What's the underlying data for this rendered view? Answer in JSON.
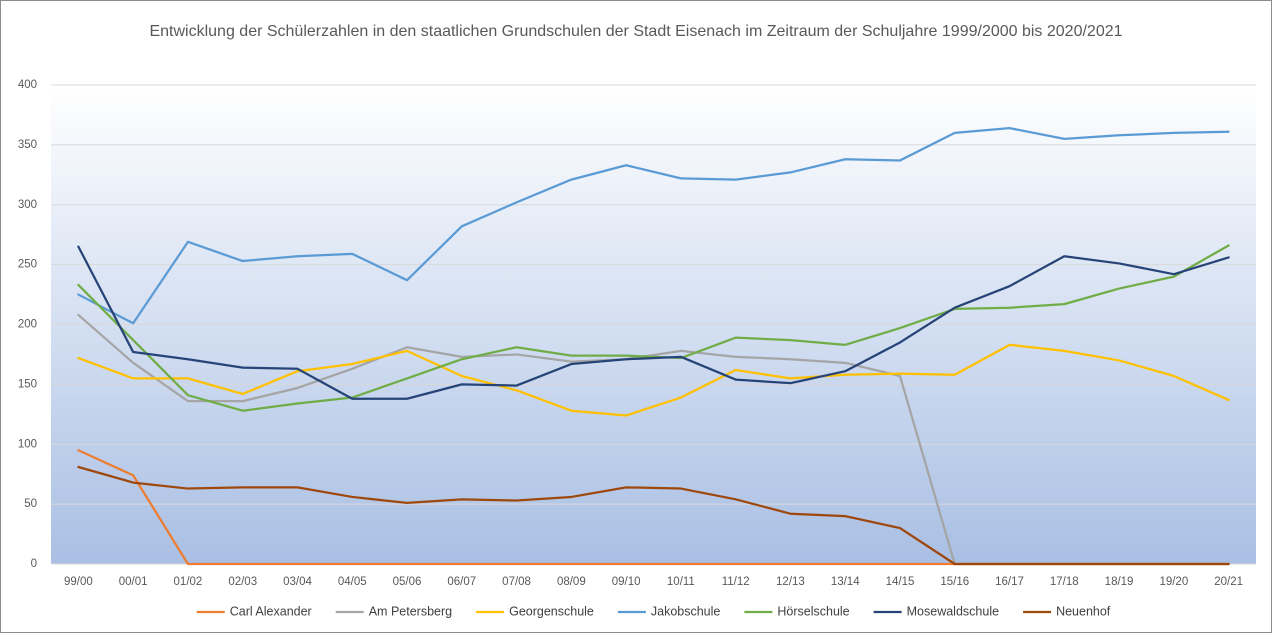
{
  "chart_data": {
    "type": "line",
    "title": "Entwicklung der Schülerzahlen in den staatlichen Grundschulen der Stadt Eisenach im Zeitraum der Schuljahre 1999/2000 bis 2020/2021",
    "categories": [
      "99/00",
      "00/01",
      "01/02",
      "02/03",
      "03/04",
      "04/05",
      "05/06",
      "06/07",
      "07/08",
      "08/09",
      "09/10",
      "10/11",
      "11/12",
      "12/13",
      "13/14",
      "14/15",
      "15/16",
      "16/17",
      "17/18",
      "18/19",
      "19/20",
      "20/21"
    ],
    "series": [
      {
        "name": "Carl Alexander",
        "color": "#ed7d31",
        "values": [
          95,
          74,
          0,
          0,
          0,
          0,
          0,
          0,
          0,
          0,
          0,
          0,
          0,
          0,
          0,
          0,
          0,
          0,
          0,
          0,
          0,
          0
        ]
      },
      {
        "name": "Am Petersberg",
        "color": "#a5a5a5",
        "values": [
          208,
          168,
          136,
          136,
          147,
          163,
          181,
          173,
          175,
          169,
          171,
          178,
          173,
          171,
          168,
          157,
          0,
          0,
          0,
          0,
          0,
          0
        ]
      },
      {
        "name": "Georgenschule",
        "color": "#ffc000",
        "values": [
          172,
          155,
          155,
          142,
          161,
          167,
          178,
          157,
          145,
          128,
          124,
          139,
          162,
          155,
          158,
          159,
          158,
          183,
          178,
          170,
          157,
          137
        ]
      },
      {
        "name": "Jakobschule",
        "color": "#5b9bd5",
        "values": [
          225,
          201,
          269,
          253,
          257,
          259,
          237,
          282,
          302,
          321,
          333,
          322,
          321,
          327,
          338,
          337,
          360,
          364,
          355,
          358,
          360,
          361
        ]
      },
      {
        "name": "Hörselschule",
        "color": "#70ad47",
        "values": [
          233,
          187,
          141,
          128,
          134,
          139,
          155,
          171,
          181,
          174,
          174,
          172,
          189,
          187,
          183,
          197,
          213,
          214,
          217,
          230,
          240,
          266
        ]
      },
      {
        "name": "Mosewaldschule",
        "color": "#264478",
        "values": [
          265,
          177,
          171,
          164,
          163,
          138,
          138,
          150,
          149,
          167,
          171,
          173,
          154,
          151,
          161,
          185,
          214,
          232,
          257,
          251,
          242,
          256
        ]
      },
      {
        "name": "Neuenhof",
        "color": "#9e480e",
        "values": [
          81,
          68,
          63,
          64,
          64,
          56,
          51,
          54,
          53,
          56,
          64,
          63,
          54,
          42,
          40,
          30,
          0,
          0,
          0,
          0,
          0,
          0
        ]
      }
    ],
    "ylim": [
      0,
      400
    ],
    "yticks": [
      0,
      50,
      100,
      150,
      200,
      250,
      300,
      350,
      400
    ],
    "grid": true,
    "legend": "bottom"
  }
}
